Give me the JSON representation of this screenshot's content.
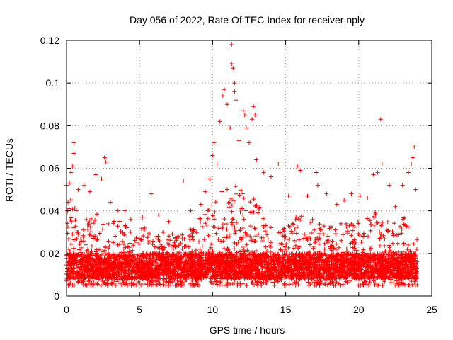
{
  "chart_data": {
    "type": "scatter",
    "title": "Day 056 of 2022, Rate Of TEC Index for receiver nply",
    "xlabel": "GPS time / hours",
    "ylabel": "ROTI / TECUs",
    "xlim": [
      0,
      25
    ],
    "ylim": [
      0,
      0.12
    ],
    "x_ticks": [
      0,
      5,
      10,
      15,
      20,
      25
    ],
    "x_tick_labels": [
      "0",
      "5",
      "10",
      "15",
      "20",
      "25"
    ],
    "y_ticks": [
      0,
      0.02,
      0.04,
      0.06,
      0.08,
      0.1,
      0.12
    ],
    "y_tick_labels": [
      "0",
      "0.02",
      "0.04",
      "0.06",
      "0.08",
      "0.1",
      "0.12"
    ],
    "grid": true,
    "marker": "+",
    "color": "#ff0000",
    "series": [
      {
        "name": "ROTI",
        "x_range": [
          0,
          24
        ],
        "typical_range": [
          0.005,
          0.03
        ],
        "points": [
          [
            0.0,
            0.052
          ],
          [
            0.1,
            0.044
          ],
          [
            0.2,
            0.053
          ],
          [
            0.3,
            0.058
          ],
          [
            0.4,
            0.061
          ],
          [
            0.5,
            0.072
          ],
          [
            0.5,
            0.067
          ],
          [
            0.8,
            0.05
          ],
          [
            1.2,
            0.052
          ],
          [
            1.6,
            0.049
          ],
          [
            2.0,
            0.057
          ],
          [
            2.4,
            0.055
          ],
          [
            2.6,
            0.065
          ],
          [
            2.7,
            0.063
          ],
          [
            3.0,
            0.044
          ],
          [
            3.5,
            0.04
          ],
          [
            4.0,
            0.04
          ],
          [
            4.4,
            0.036
          ],
          [
            5.2,
            0.037
          ],
          [
            5.8,
            0.048
          ],
          [
            6.3,
            0.038
          ],
          [
            7.0,
            0.035
          ],
          [
            8.0,
            0.054
          ],
          [
            8.5,
            0.04
          ],
          [
            9.2,
            0.043
          ],
          [
            9.5,
            0.049
          ],
          [
            9.8,
            0.055
          ],
          [
            10.0,
            0.066
          ],
          [
            10.1,
            0.072
          ],
          [
            10.3,
            0.062
          ],
          [
            10.5,
            0.082
          ],
          [
            10.7,
            0.094
          ],
          [
            10.8,
            0.097
          ],
          [
            11.0,
            0.09
          ],
          [
            11.2,
            0.079
          ],
          [
            11.3,
            0.118
          ],
          [
            11.3,
            0.109
          ],
          [
            11.4,
            0.107
          ],
          [
            11.5,
            0.1
          ],
          [
            11.5,
            0.096
          ],
          [
            11.6,
            0.092
          ],
          [
            11.8,
            0.073
          ],
          [
            12.1,
            0.087
          ],
          [
            12.2,
            0.085
          ],
          [
            12.3,
            0.079
          ],
          [
            12.5,
            0.072
          ],
          [
            12.7,
            0.083
          ],
          [
            12.8,
            0.089
          ],
          [
            12.9,
            0.085
          ],
          [
            13.0,
            0.064
          ],
          [
            13.5,
            0.058
          ],
          [
            14.0,
            0.056
          ],
          [
            14.5,
            0.062
          ],
          [
            15.2,
            0.047
          ],
          [
            15.8,
            0.061
          ],
          [
            16.0,
            0.059
          ],
          [
            16.5,
            0.047
          ],
          [
            17.1,
            0.058
          ],
          [
            17.2,
            0.052
          ],
          [
            17.8,
            0.048
          ],
          [
            18.5,
            0.043
          ],
          [
            19.0,
            0.045
          ],
          [
            19.5,
            0.048
          ],
          [
            20.1,
            0.047
          ],
          [
            20.6,
            0.046
          ],
          [
            21.0,
            0.057
          ],
          [
            21.3,
            0.058
          ],
          [
            21.5,
            0.083
          ],
          [
            21.6,
            0.062
          ],
          [
            22.1,
            0.052
          ],
          [
            22.5,
            0.042
          ],
          [
            23.0,
            0.052
          ],
          [
            23.4,
            0.058
          ],
          [
            23.6,
            0.062
          ],
          [
            23.7,
            0.065
          ],
          [
            23.8,
            0.07
          ],
          [
            23.9,
            0.05
          ]
        ]
      }
    ]
  }
}
